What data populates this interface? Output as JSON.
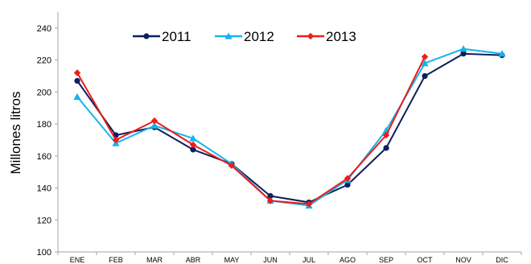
{
  "chart_data": {
    "type": "line",
    "title": "",
    "xlabel": "",
    "ylabel": "Millones litros",
    "ylim": [
      100,
      250
    ],
    "yticks": [
      100,
      120,
      140,
      160,
      180,
      200,
      220,
      240
    ],
    "grid": false,
    "legend_position": "top-center",
    "categories": [
      "ENE",
      "FEB",
      "MAR",
      "ABR",
      "MAY",
      "JUN",
      "JUL",
      "AGO",
      "SEP",
      "OCT",
      "NOV",
      "DIC"
    ],
    "series": [
      {
        "name": "2011",
        "color": "#0d1f5c",
        "marker": "circle",
        "values": [
          207,
          173,
          178,
          164,
          155,
          135,
          131,
          142,
          165,
          210,
          224,
          223
        ]
      },
      {
        "name": "2012",
        "color": "#12b5ea",
        "marker": "triangle",
        "values": [
          197,
          168,
          179,
          171,
          155,
          132,
          129,
          145,
          176,
          218,
          227,
          224
        ]
      },
      {
        "name": "2013",
        "color": "#ee1c1c",
        "marker": "diamond",
        "values": [
          212,
          170,
          182,
          167,
          154,
          132,
          130,
          146,
          173,
          222,
          null,
          null
        ]
      }
    ]
  }
}
